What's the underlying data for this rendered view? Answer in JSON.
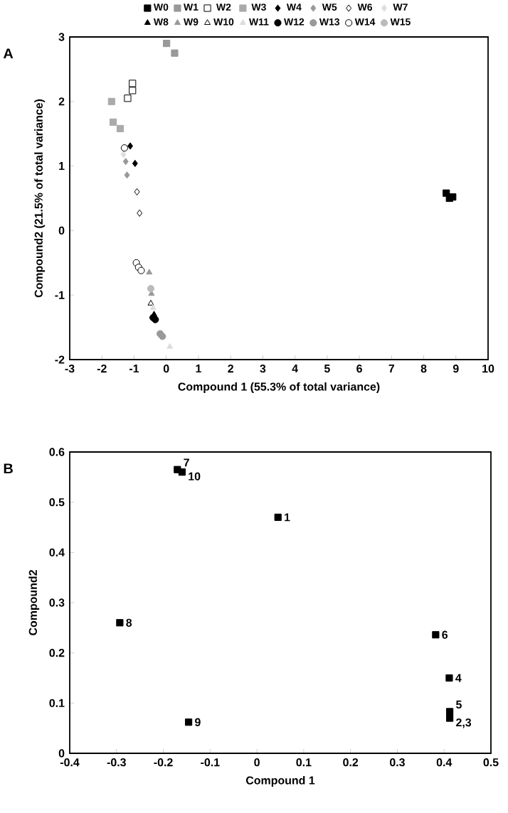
{
  "chart_data": [
    {
      "type": "scatter",
      "xlabel": "Compound 1 (55.3% of total variance)",
      "ylabel": "Compound2 (21.5% of total variance)",
      "annotations": [
        "A"
      ],
      "legend": "top",
      "grid": false,
      "xlim": [
        -3,
        10
      ],
      "xticks": [
        -3,
        -2,
        -1,
        0,
        1,
        2,
        3,
        4,
        5,
        6,
        7,
        8,
        9,
        10
      ],
      "ylim": [
        -2,
        3
      ],
      "yticks": [
        -2,
        -1,
        0,
        1,
        2,
        3
      ],
      "series": [
        {
          "name": "W0",
          "color": "#000000",
          "marker": "square",
          "x": [
            8.7,
            8.8,
            8.9
          ],
          "values": [
            0.58,
            0.5,
            0.52
          ]
        },
        {
          "name": "W1",
          "color": "#999999",
          "marker": "square",
          "x": [
            0.01,
            0.26
          ],
          "values": [
            2.9,
            2.75
          ]
        },
        {
          "name": "W2",
          "color": "#ffffff",
          "marker": "square",
          "x": [
            -1.05,
            -1.05,
            -1.2
          ],
          "values": [
            2.28,
            2.17,
            2.05
          ]
        },
        {
          "name": "W3",
          "color": "#aaaaaa",
          "marker": "square",
          "x": [
            -1.7,
            -1.65,
            -1.43
          ],
          "values": [
            2.0,
            1.68,
            1.58
          ]
        },
        {
          "name": "W4",
          "color": "#000000",
          "marker": "diamond",
          "x": [
            -1.12,
            -0.97
          ],
          "values": [
            1.31,
            1.04
          ]
        },
        {
          "name": "W5",
          "color": "#999999",
          "marker": "diamond",
          "x": [
            -1.26,
            -1.22
          ],
          "values": [
            1.07,
            0.86
          ]
        },
        {
          "name": "W6",
          "color": "#ffffff",
          "marker": "diamond",
          "x": [
            -0.91,
            -0.83
          ],
          "values": [
            0.6,
            0.27
          ]
        },
        {
          "name": "W7",
          "color": "#dddddd",
          "marker": "diamond",
          "x": [
            -1.33
          ],
          "values": [
            1.18
          ]
        },
        {
          "name": "W8",
          "color": "#000000",
          "marker": "triangle",
          "x": [
            -0.38
          ],
          "values": [
            -1.3
          ]
        },
        {
          "name": "W9",
          "color": "#999999",
          "marker": "triangle",
          "x": [
            -0.53,
            -0.46
          ],
          "values": [
            -0.65,
            -0.98
          ]
        },
        {
          "name": "W10",
          "color": "#ffffff",
          "marker": "triangle",
          "x": [
            -0.48
          ],
          "values": [
            -1.13
          ]
        },
        {
          "name": "W11",
          "color": "#dddddd",
          "marker": "triangle",
          "x": [
            0.11,
            -0.41
          ],
          "values": [
            -1.8,
            -1.2
          ]
        },
        {
          "name": "W12",
          "color": "#000000",
          "marker": "circle",
          "x": [
            -0.41,
            -0.34
          ],
          "values": [
            -1.35,
            -1.38
          ]
        },
        {
          "name": "W13",
          "color": "#999999",
          "marker": "circle",
          "x": [
            -0.19,
            -0.12
          ],
          "values": [
            -1.6,
            -1.64
          ]
        },
        {
          "name": "W14",
          "color": "#ffffff",
          "marker": "circle",
          "x": [
            -0.93,
            -0.86,
            -0.78,
            -1.3
          ],
          "values": [
            -0.5,
            -0.57,
            -0.62,
            1.28
          ]
        },
        {
          "name": "W15",
          "color": "#bbbbbb",
          "marker": "circle",
          "x": [
            -0.48
          ],
          "values": [
            -0.9
          ]
        }
      ]
    },
    {
      "type": "scatter",
      "xlabel": "Compound 1",
      "ylabel": "Compound2",
      "grid": false,
      "marker": "square",
      "xlim": [
        -0.4,
        0.5
      ],
      "xticks": [
        -0.4,
        -0.3,
        -0.2,
        -0.1,
        0,
        0.1,
        0.2,
        0.3,
        0.4,
        0.5
      ],
      "ylim": [
        0,
        0.6
      ],
      "yticks": [
        0,
        0.1,
        0.2,
        0.3,
        0.4,
        0.5,
        0.6
      ],
      "annotations": [
        "B",
        {
          "text": "7",
          "x": -0.17,
          "y": 0.565
        },
        {
          "text": "10",
          "x": -0.16,
          "y": 0.56
        },
        {
          "text": "1",
          "x": 0.045,
          "y": 0.47
        },
        {
          "text": "8",
          "x": -0.293,
          "y": 0.26
        },
        {
          "text": "6",
          "x": 0.382,
          "y": 0.236
        },
        {
          "text": "4",
          "x": 0.411,
          "y": 0.15
        },
        {
          "text": "5",
          "x": 0.412,
          "y": 0.083
        },
        {
          "text": "2,3",
          "x": 0.412,
          "y": 0.07
        },
        {
          "text": "9",
          "x": -0.146,
          "y": 0.062
        }
      ],
      "series": [
        {
          "color": "#000000",
          "x": [
            -0.17,
            -0.16,
            0.045,
            -0.293,
            0.382,
            0.411,
            0.412,
            0.412,
            -0.146
          ],
          "values": [
            0.565,
            0.56,
            0.47,
            0.26,
            0.236,
            0.15,
            0.083,
            0.07,
            0.062
          ]
        }
      ]
    }
  ]
}
